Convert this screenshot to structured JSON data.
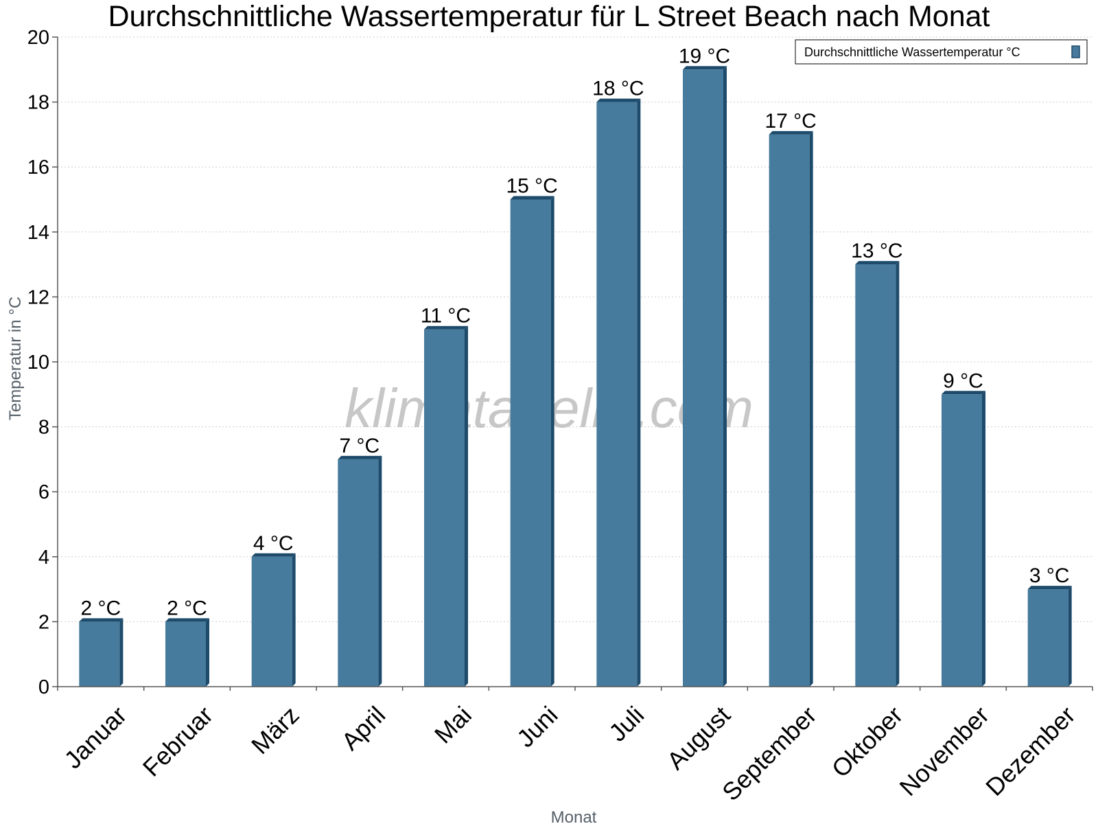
{
  "chart_data": {
    "type": "bar",
    "title": "Durchschnittliche Wassertemperatur für L Street Beach nach Monat",
    "xlabel": "Monat",
    "ylabel": "Temperatur in °C",
    "ylim": [
      0,
      20
    ],
    "yticks": [
      0,
      2,
      4,
      6,
      8,
      10,
      12,
      14,
      16,
      18,
      20
    ],
    "grid": true,
    "legend_position": "top-right",
    "unit": "°C",
    "categories": [
      "Januar",
      "Februar",
      "März",
      "April",
      "Mai",
      "Juni",
      "Juli",
      "August",
      "September",
      "Oktober",
      "November",
      "Dezember"
    ],
    "series": [
      {
        "name": "Durchschnittliche Wassertemperatur °C",
        "color": "#467b9d",
        "values": [
          2,
          2,
          4,
          7,
          11,
          15,
          18,
          19,
          17,
          13,
          9,
          3
        ]
      }
    ],
    "data_labels": [
      "2 °C",
      "2 °C",
      "4 °C",
      "7 °C",
      "11 °C",
      "15 °C",
      "18 °C",
      "19 °C",
      "17 °C",
      "13 °C",
      "9 °C",
      "3 °C"
    ]
  },
  "watermark": "klimatabelle.com",
  "colors": {
    "bar": "#467b9d",
    "bar_side": "#1e4b6b",
    "bar_top": "#1e4b6b",
    "grid": "#cccccc",
    "axis": "#555555"
  }
}
